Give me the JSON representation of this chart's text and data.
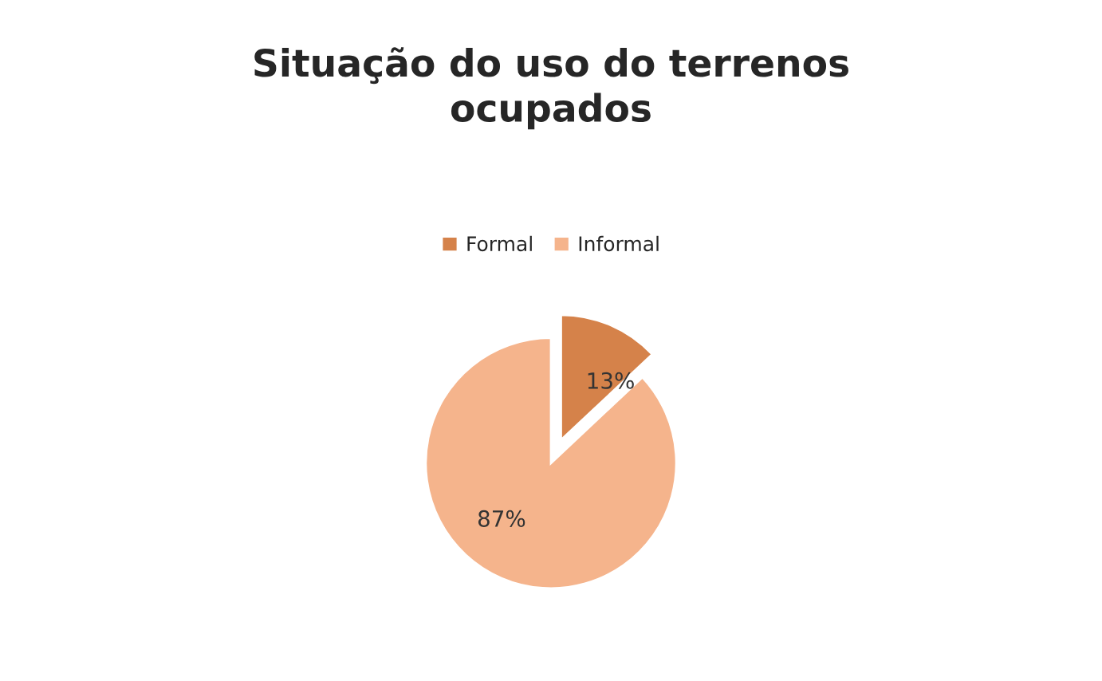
{
  "chart_data": {
    "type": "pie",
    "title": "Situação do uso do terrenos\nocupados",
    "categories": [
      "Formal",
      "Informal"
    ],
    "values": [
      13,
      87
    ],
    "colors": [
      "#d5824a",
      "#f5b48c"
    ],
    "value_labels": [
      "13%",
      "87%"
    ],
    "legend": "top"
  }
}
